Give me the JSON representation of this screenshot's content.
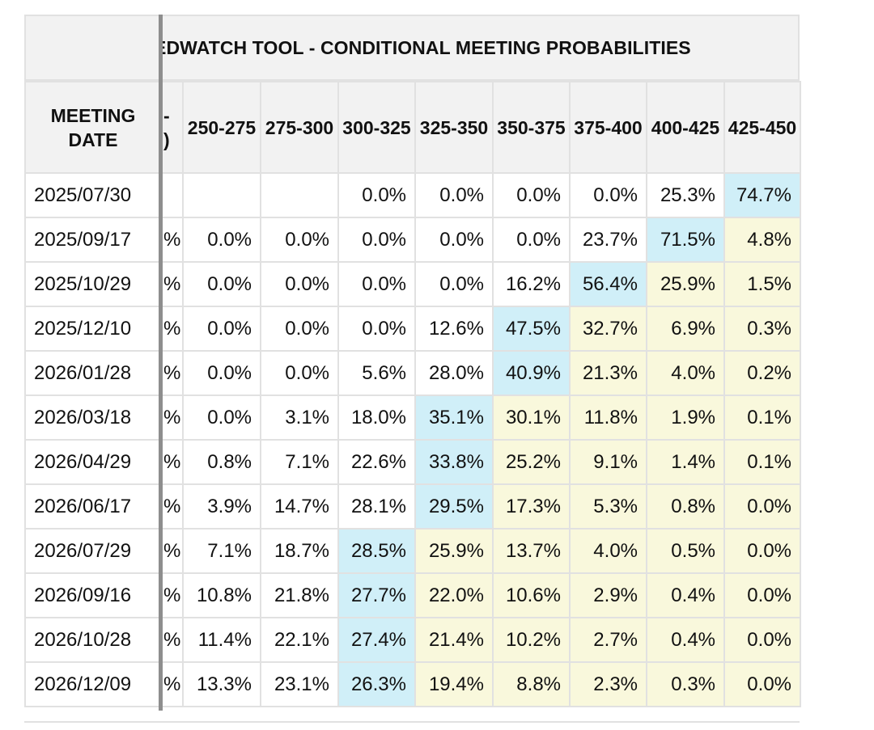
{
  "title": "EDWATCH TOOL - CONDITIONAL MEETING PROBABILITIES",
  "title_visible": "EDWATCH TOOL - CONDITIONAL MEETING PROBABILITIES",
  "header": {
    "date_col": "MEETING DATE",
    "partial_col": "-\n)",
    "columns": [
      "250-275",
      "275-300",
      "300-325",
      "325-350",
      "350-375",
      "375-400",
      "400-425",
      "425-450"
    ]
  },
  "colors": {
    "highlight_max": "#d0eff8",
    "highlight_near": "#f9f8dc",
    "header_bg": "#f2f2f2",
    "grid": "#e1e1e1",
    "divider": "#8e8e8e"
  },
  "rows": [
    {
      "date": "2025/07/30",
      "partial": "",
      "cells": [
        "",
        "",
        "0.0%",
        "0.0%",
        "0.0%",
        "0.0%",
        "25.3%",
        "74.7%"
      ],
      "shade": [
        "w",
        "w",
        "w",
        "w",
        "w",
        "w",
        "w",
        "b"
      ]
    },
    {
      "date": "2025/09/17",
      "partial": "%",
      "cells": [
        "0.0%",
        "0.0%",
        "0.0%",
        "0.0%",
        "0.0%",
        "23.7%",
        "71.5%",
        "4.8%"
      ],
      "shade": [
        "w",
        "w",
        "w",
        "w",
        "w",
        "w",
        "b",
        "y"
      ]
    },
    {
      "date": "2025/10/29",
      "partial": "%",
      "cells": [
        "0.0%",
        "0.0%",
        "0.0%",
        "0.0%",
        "16.2%",
        "56.4%",
        "25.9%",
        "1.5%"
      ],
      "shade": [
        "w",
        "w",
        "w",
        "w",
        "w",
        "b",
        "y",
        "y"
      ]
    },
    {
      "date": "2025/12/10",
      "partial": "%",
      "cells": [
        "0.0%",
        "0.0%",
        "0.0%",
        "12.6%",
        "47.5%",
        "32.7%",
        "6.9%",
        "0.3%"
      ],
      "shade": [
        "w",
        "w",
        "w",
        "w",
        "b",
        "y",
        "y",
        "y"
      ]
    },
    {
      "date": "2026/01/28",
      "partial": "%",
      "cells": [
        "0.0%",
        "0.0%",
        "5.6%",
        "28.0%",
        "40.9%",
        "21.3%",
        "4.0%",
        "0.2%"
      ],
      "shade": [
        "w",
        "w",
        "w",
        "w",
        "b",
        "y",
        "y",
        "y"
      ]
    },
    {
      "date": "2026/03/18",
      "partial": "%",
      "cells": [
        "0.0%",
        "3.1%",
        "18.0%",
        "35.1%",
        "30.1%",
        "11.8%",
        "1.9%",
        "0.1%"
      ],
      "shade": [
        "w",
        "w",
        "w",
        "b",
        "y",
        "y",
        "y",
        "y"
      ]
    },
    {
      "date": "2026/04/29",
      "partial": "%",
      "cells": [
        "0.8%",
        "7.1%",
        "22.6%",
        "33.8%",
        "25.2%",
        "9.1%",
        "1.4%",
        "0.1%"
      ],
      "shade": [
        "w",
        "w",
        "w",
        "b",
        "y",
        "y",
        "y",
        "y"
      ]
    },
    {
      "date": "2026/06/17",
      "partial": "%",
      "cells": [
        "3.9%",
        "14.7%",
        "28.1%",
        "29.5%",
        "17.3%",
        "5.3%",
        "0.8%",
        "0.0%"
      ],
      "shade": [
        "w",
        "w",
        "w",
        "b",
        "y",
        "y",
        "y",
        "y"
      ]
    },
    {
      "date": "2026/07/29",
      "partial": "%",
      "cells": [
        "7.1%",
        "18.7%",
        "28.5%",
        "25.9%",
        "13.7%",
        "4.0%",
        "0.5%",
        "0.0%"
      ],
      "shade": [
        "w",
        "w",
        "b",
        "y",
        "y",
        "y",
        "y",
        "y"
      ]
    },
    {
      "date": "2026/09/16",
      "partial": "%",
      "cells": [
        "10.8%",
        "21.8%",
        "27.7%",
        "22.0%",
        "10.6%",
        "2.9%",
        "0.4%",
        "0.0%"
      ],
      "shade": [
        "w",
        "w",
        "b",
        "y",
        "y",
        "y",
        "y",
        "y"
      ]
    },
    {
      "date": "2026/10/28",
      "partial": "%",
      "cells": [
        "11.4%",
        "22.1%",
        "27.4%",
        "21.4%",
        "10.2%",
        "2.7%",
        "0.4%",
        "0.0%"
      ],
      "shade": [
        "w",
        "w",
        "b",
        "y",
        "y",
        "y",
        "y",
        "y"
      ]
    },
    {
      "date": "2026/12/09",
      "partial": "%",
      "cells": [
        "13.3%",
        "23.1%",
        "26.3%",
        "19.4%",
        "8.8%",
        "2.3%",
        "0.3%",
        "0.0%"
      ],
      "shade": [
        "w",
        "w",
        "b",
        "y",
        "y",
        "y",
        "y",
        "y"
      ]
    }
  ]
}
